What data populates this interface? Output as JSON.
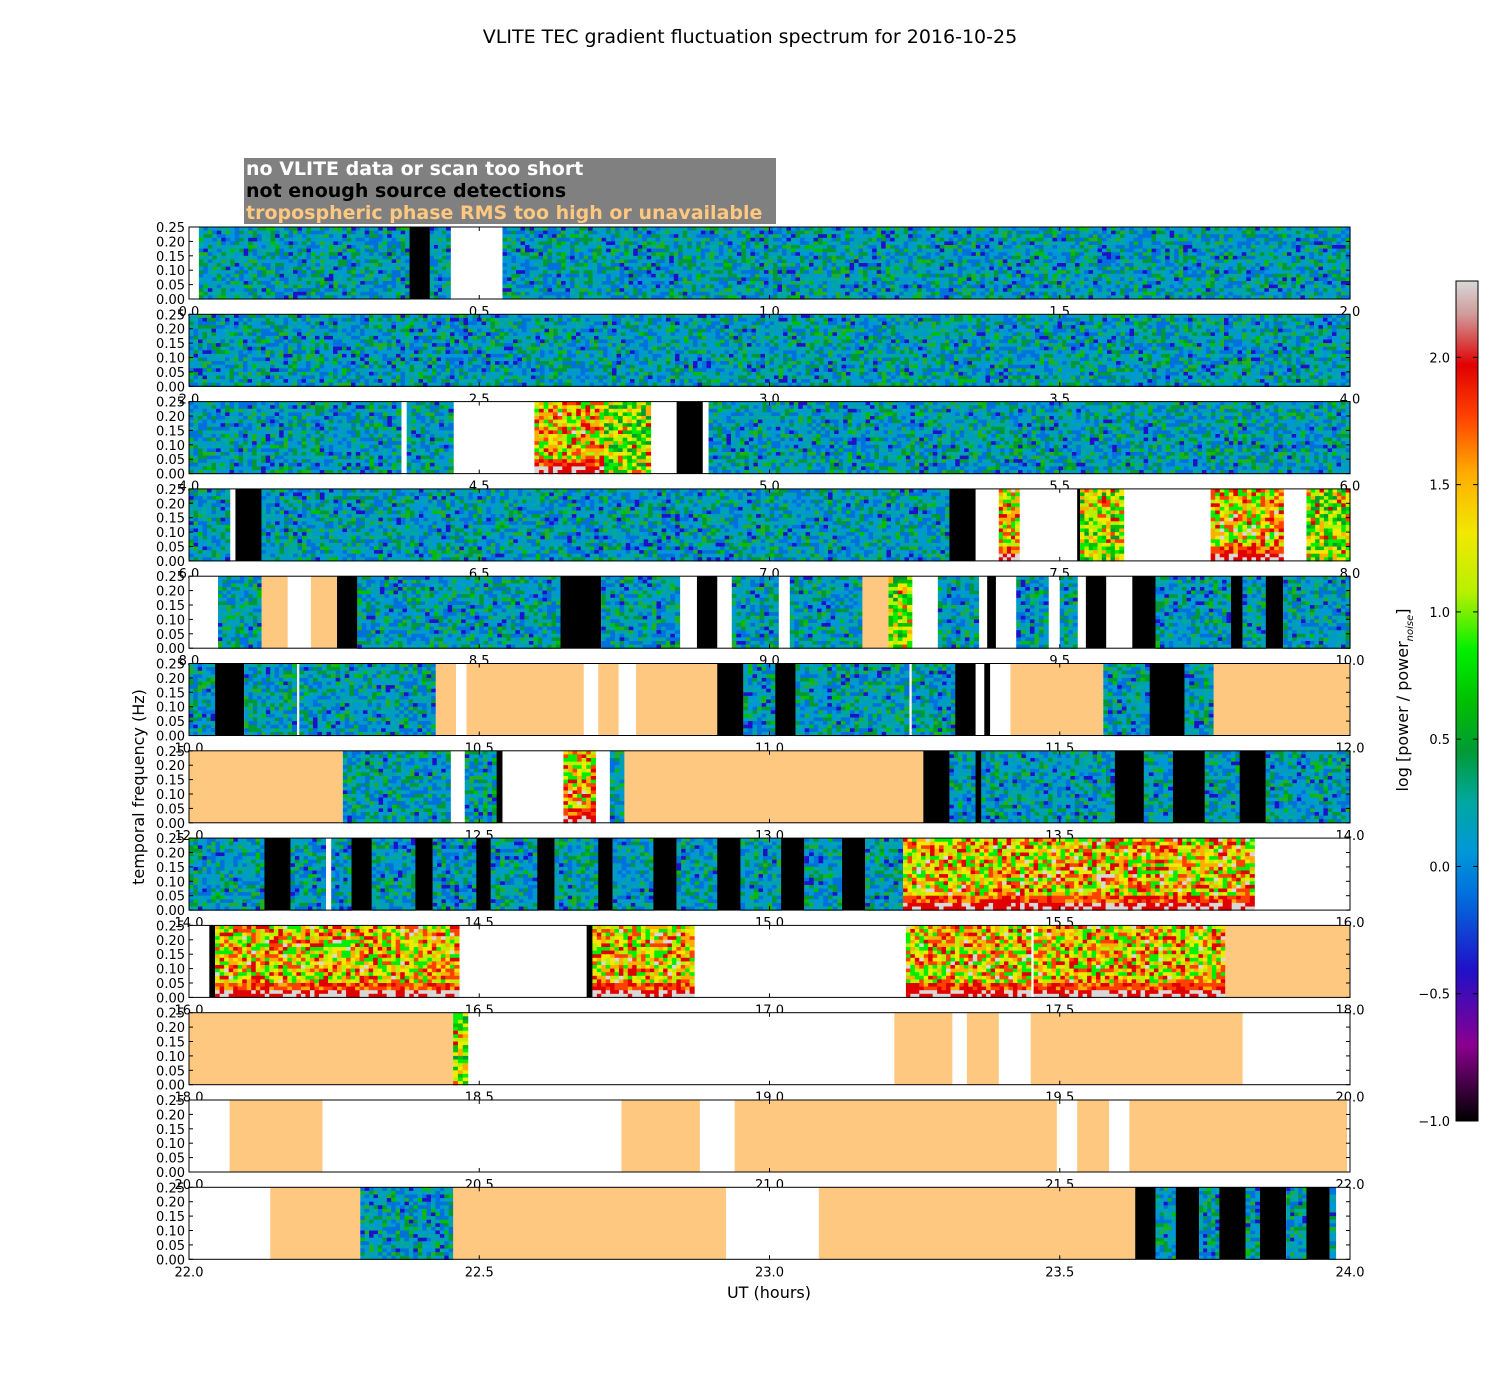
{
  "chart_data": {
    "type": "heatmap",
    "title": "VLITE TEC gradient fluctuation spectrum for 2016-10-25",
    "xlabel": "UT (hours)",
    "ylabel": "temporal frequency (Hz)",
    "ylim": [
      0.0,
      0.25
    ],
    "yticks": [
      "0.00",
      "0.05",
      "0.10",
      "0.15",
      "0.20",
      "0.25"
    ],
    "colorbar": {
      "label": "log [power / power",
      "label_subscript": "noise",
      "label_close": "]",
      "range": [
        -1.0,
        2.3
      ],
      "ticks": [
        "−1.0",
        "−0.5",
        "0.0",
        "0.5",
        "1.0",
        "1.5",
        "2.0"
      ],
      "tick_values": [
        -1.0,
        -0.5,
        0.0,
        0.5,
        1.0,
        1.5,
        2.0
      ]
    },
    "legend": [
      {
        "label": "no VLITE data or scan too short",
        "color": "#ffffff"
      },
      {
        "label": "not enough source detections",
        "color": "#000000"
      },
      {
        "label": "tropospheric phase RMS too high or unavailable",
        "color": "#ffc880"
      }
    ],
    "colors": {
      "no_data": "#ffffff",
      "few_sources": "#000000",
      "trop": "#ffc880"
    },
    "segment_encoding": "[UT start, UT end, kind] kind: w=no data, k=few sources, t=tropo RMS, q=quiet spectrum, a=active spectrum, s=strong low-freq spectrum",
    "panels": [
      {
        "range": [
          0,
          2
        ],
        "ticks": [
          "0.0",
          "0.5",
          "1.0",
          "1.5",
          "2.0"
        ],
        "segments": [
          [
            0,
            0.017,
            "w"
          ],
          [
            0.017,
            0.38,
            "q"
          ],
          [
            0.38,
            0.415,
            "k"
          ],
          [
            0.415,
            0.45,
            "q"
          ],
          [
            0.45,
            0.54,
            "w"
          ],
          [
            0.54,
            2.0,
            "q"
          ]
        ]
      },
      {
        "range": [
          2,
          4
        ],
        "ticks": [
          "2.0",
          "2.5",
          "3.0",
          "3.5",
          "4.0"
        ],
        "segments": [
          [
            2.0,
            4.0,
            "q"
          ]
        ]
      },
      {
        "range": [
          4,
          6
        ],
        "ticks": [
          "4.0",
          "4.5",
          "5.0",
          "5.5",
          "6.0"
        ],
        "segments": [
          [
            4.0,
            4.365,
            "q"
          ],
          [
            4.365,
            4.375,
            "w"
          ],
          [
            4.375,
            4.455,
            "q"
          ],
          [
            4.455,
            4.595,
            "w"
          ],
          [
            4.595,
            4.715,
            "s"
          ],
          [
            4.715,
            4.795,
            "a"
          ],
          [
            4.795,
            4.84,
            "w"
          ],
          [
            4.84,
            4.885,
            "k"
          ],
          [
            4.885,
            4.895,
            "w"
          ],
          [
            4.895,
            6.0,
            "q"
          ]
        ]
      },
      {
        "range": [
          6,
          8
        ],
        "ticks": [
          "6.0",
          "6.5",
          "7.0",
          "7.5",
          "8.0"
        ],
        "segments": [
          [
            6.0,
            6.07,
            "q"
          ],
          [
            6.07,
            6.08,
            "w"
          ],
          [
            6.08,
            6.125,
            "k"
          ],
          [
            6.125,
            7.31,
            "q"
          ],
          [
            7.31,
            7.355,
            "k"
          ],
          [
            7.355,
            7.395,
            "w"
          ],
          [
            7.395,
            7.43,
            "s"
          ],
          [
            7.43,
            7.53,
            "w"
          ],
          [
            7.53,
            7.535,
            "k"
          ],
          [
            7.535,
            7.61,
            "a"
          ],
          [
            7.61,
            7.76,
            "w"
          ],
          [
            7.76,
            7.885,
            "s"
          ],
          [
            7.885,
            7.925,
            "w"
          ],
          [
            7.925,
            8.0,
            "a"
          ]
        ]
      },
      {
        "range": [
          8,
          10
        ],
        "ticks": [
          "8.0",
          "8.5",
          "9.0",
          "9.5",
          "10.0"
        ],
        "segments": [
          [
            8.0,
            8.05,
            "w"
          ],
          [
            8.05,
            8.125,
            "q"
          ],
          [
            8.125,
            8.17,
            "t"
          ],
          [
            8.17,
            8.21,
            "w"
          ],
          [
            8.21,
            8.255,
            "t"
          ],
          [
            8.255,
            8.29,
            "k"
          ],
          [
            8.29,
            8.64,
            "q"
          ],
          [
            8.64,
            8.71,
            "k"
          ],
          [
            8.71,
            8.845,
            "q"
          ],
          [
            8.845,
            8.875,
            "w"
          ],
          [
            8.875,
            8.91,
            "k"
          ],
          [
            8.91,
            8.935,
            "w"
          ],
          [
            8.935,
            9.015,
            "q"
          ],
          [
            9.015,
            9.035,
            "w"
          ],
          [
            9.035,
            9.16,
            "q"
          ],
          [
            9.16,
            9.205,
            "t"
          ],
          [
            9.205,
            9.245,
            "a"
          ],
          [
            9.245,
            9.29,
            "w"
          ],
          [
            9.29,
            9.36,
            "q"
          ],
          [
            9.36,
            9.375,
            "w"
          ],
          [
            9.375,
            9.39,
            "k"
          ],
          [
            9.39,
            9.425,
            "w"
          ],
          [
            9.425,
            9.48,
            "q"
          ],
          [
            9.48,
            9.5,
            "w"
          ],
          [
            9.5,
            9.53,
            "q"
          ],
          [
            9.53,
            9.545,
            "w"
          ],
          [
            9.545,
            9.58,
            "k"
          ],
          [
            9.58,
            9.625,
            "w"
          ],
          [
            9.625,
            9.665,
            "k"
          ],
          [
            9.665,
            9.795,
            "q"
          ],
          [
            9.795,
            9.815,
            "k"
          ],
          [
            9.815,
            9.855,
            "q"
          ],
          [
            9.855,
            9.885,
            "k"
          ],
          [
            9.885,
            10.0,
            "q"
          ]
        ]
      },
      {
        "range": [
          10,
          12
        ],
        "ticks": [
          "10.0",
          "10.5",
          "11.0",
          "11.5",
          "12.0"
        ],
        "segments": [
          [
            10.0,
            10.045,
            "q"
          ],
          [
            10.045,
            10.095,
            "k"
          ],
          [
            10.095,
            10.185,
            "q"
          ],
          [
            10.185,
            10.19,
            "w"
          ],
          [
            10.19,
            10.425,
            "q"
          ],
          [
            10.425,
            10.46,
            "t"
          ],
          [
            10.46,
            10.478,
            "w"
          ],
          [
            10.478,
            10.68,
            "t"
          ],
          [
            10.68,
            10.705,
            "w"
          ],
          [
            10.705,
            10.74,
            "t"
          ],
          [
            10.74,
            10.77,
            "w"
          ],
          [
            10.77,
            10.91,
            "t"
          ],
          [
            10.91,
            10.955,
            "k"
          ],
          [
            10.955,
            11.01,
            "q"
          ],
          [
            11.01,
            11.045,
            "k"
          ],
          [
            11.045,
            11.24,
            "q"
          ],
          [
            11.24,
            11.245,
            "w"
          ],
          [
            11.245,
            11.32,
            "q"
          ],
          [
            11.32,
            11.355,
            "k"
          ],
          [
            11.355,
            11.37,
            "w"
          ],
          [
            11.37,
            11.38,
            "k"
          ],
          [
            11.38,
            11.415,
            "w"
          ],
          [
            11.415,
            11.575,
            "t"
          ],
          [
            11.575,
            11.655,
            "q"
          ],
          [
            11.655,
            11.715,
            "k"
          ],
          [
            11.715,
            11.765,
            "q"
          ],
          [
            11.765,
            12.0,
            "t"
          ]
        ]
      },
      {
        "range": [
          12,
          14
        ],
        "ticks": [
          "12.0",
          "12.5",
          "13.0",
          "13.5",
          "14.0"
        ],
        "segments": [
          [
            12.0,
            12.265,
            "t"
          ],
          [
            12.265,
            12.45,
            "q"
          ],
          [
            12.45,
            12.475,
            "w"
          ],
          [
            12.475,
            12.53,
            "q"
          ],
          [
            12.53,
            12.54,
            "k"
          ],
          [
            12.54,
            12.645,
            "w"
          ],
          [
            12.645,
            12.7,
            "s"
          ],
          [
            12.7,
            12.725,
            "w"
          ],
          [
            12.725,
            12.75,
            "q"
          ],
          [
            12.75,
            13.265,
            "t"
          ],
          [
            13.265,
            13.31,
            "k"
          ],
          [
            13.31,
            13.355,
            "q"
          ],
          [
            13.355,
            13.365,
            "k"
          ],
          [
            13.365,
            13.595,
            "q"
          ],
          [
            13.595,
            13.645,
            "k"
          ],
          [
            13.645,
            13.695,
            "q"
          ],
          [
            13.695,
            13.75,
            "k"
          ],
          [
            13.75,
            13.81,
            "q"
          ],
          [
            13.81,
            13.855,
            "k"
          ],
          [
            13.855,
            14.0,
            "q"
          ]
        ]
      },
      {
        "range": [
          14,
          16
        ],
        "ticks": [
          "14.0",
          "14.5",
          "15.0",
          "15.5",
          "16.0"
        ],
        "segments": [
          [
            14.0,
            14.13,
            "q"
          ],
          [
            14.13,
            14.175,
            "k"
          ],
          [
            14.175,
            14.235,
            "q"
          ],
          [
            14.235,
            14.245,
            "w"
          ],
          [
            14.245,
            14.28,
            "q"
          ],
          [
            14.28,
            14.315,
            "k"
          ],
          [
            14.315,
            14.39,
            "q"
          ],
          [
            14.39,
            14.42,
            "k"
          ],
          [
            14.42,
            14.495,
            "q"
          ],
          [
            14.495,
            14.52,
            "k"
          ],
          [
            14.52,
            14.6,
            "q"
          ],
          [
            14.6,
            14.63,
            "k"
          ],
          [
            14.63,
            14.705,
            "q"
          ],
          [
            14.705,
            14.73,
            "k"
          ],
          [
            14.73,
            14.8,
            "q"
          ],
          [
            14.8,
            14.84,
            "k"
          ],
          [
            14.84,
            14.91,
            "q"
          ],
          [
            14.91,
            14.95,
            "k"
          ],
          [
            14.95,
            15.02,
            "q"
          ],
          [
            15.02,
            15.06,
            "k"
          ],
          [
            15.06,
            15.125,
            "q"
          ],
          [
            15.125,
            15.165,
            "k"
          ],
          [
            15.165,
            15.23,
            "q"
          ],
          [
            15.23,
            15.835,
            "s"
          ],
          [
            15.835,
            16.0,
            "w"
          ]
        ]
      },
      {
        "range": [
          16,
          18
        ],
        "ticks": [
          "16.0",
          "16.5",
          "17.0",
          "17.5",
          "18.0"
        ],
        "segments": [
          [
            16.0,
            16.035,
            "w"
          ],
          [
            16.035,
            16.045,
            "k"
          ],
          [
            16.045,
            16.465,
            "s"
          ],
          [
            16.465,
            16.685,
            "w"
          ],
          [
            16.685,
            16.695,
            "k"
          ],
          [
            16.695,
            16.87,
            "s"
          ],
          [
            16.87,
            17.235,
            "w"
          ],
          [
            17.235,
            17.45,
            "s"
          ],
          [
            17.45,
            17.455,
            "w"
          ],
          [
            17.455,
            17.785,
            "s"
          ],
          [
            17.785,
            18.0,
            "t"
          ]
        ]
      },
      {
        "range": [
          18,
          20
        ],
        "ticks": [
          "18.0",
          "18.5",
          "19.0",
          "19.5",
          "20.0"
        ],
        "segments": [
          [
            18.0,
            18.455,
            "t"
          ],
          [
            18.455,
            18.48,
            "a"
          ],
          [
            18.48,
            19.215,
            "w"
          ],
          [
            19.215,
            19.315,
            "t"
          ],
          [
            19.315,
            19.34,
            "w"
          ],
          [
            19.34,
            19.395,
            "t"
          ],
          [
            19.395,
            19.45,
            "w"
          ],
          [
            19.45,
            19.815,
            "t"
          ],
          [
            19.815,
            20.0,
            "w"
          ]
        ]
      },
      {
        "range": [
          20,
          22
        ],
        "ticks": [
          "20.0",
          "20.5",
          "21.0",
          "21.5",
          "22.0"
        ],
        "segments": [
          [
            20.0,
            20.07,
            "w"
          ],
          [
            20.07,
            20.23,
            "t"
          ],
          [
            20.23,
            20.745,
            "w"
          ],
          [
            20.745,
            20.88,
            "t"
          ],
          [
            20.88,
            20.94,
            "w"
          ],
          [
            20.94,
            21.495,
            "t"
          ],
          [
            21.495,
            21.53,
            "w"
          ],
          [
            21.53,
            21.585,
            "t"
          ],
          [
            21.585,
            21.62,
            "w"
          ],
          [
            21.62,
            21.995,
            "t"
          ],
          [
            21.995,
            22.0,
            "w"
          ]
        ]
      },
      {
        "range": [
          22,
          24
        ],
        "ticks": [
          "22.0",
          "22.5",
          "23.0",
          "23.5",
          "24.0"
        ],
        "segments": [
          [
            22.0,
            22.14,
            "w"
          ],
          [
            22.14,
            22.295,
            "t"
          ],
          [
            22.295,
            22.455,
            "q"
          ],
          [
            22.455,
            22.925,
            "t"
          ],
          [
            22.925,
            23.085,
            "w"
          ],
          [
            23.085,
            23.63,
            "t"
          ],
          [
            23.63,
            23.665,
            "k"
          ],
          [
            23.665,
            23.7,
            "q"
          ],
          [
            23.7,
            23.74,
            "k"
          ],
          [
            23.74,
            23.775,
            "q"
          ],
          [
            23.775,
            23.82,
            "k"
          ],
          [
            23.82,
            23.845,
            "q"
          ],
          [
            23.845,
            23.89,
            "k"
          ],
          [
            23.89,
            23.925,
            "q"
          ],
          [
            23.925,
            23.965,
            "k"
          ],
          [
            23.965,
            23.975,
            "q"
          ],
          [
            23.975,
            24.0,
            "w"
          ]
        ]
      }
    ]
  }
}
